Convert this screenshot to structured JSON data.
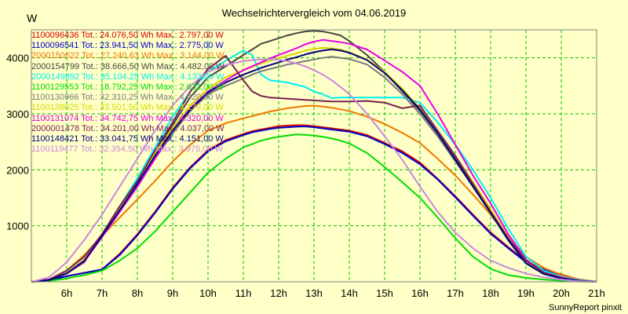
{
  "chart_data": {
    "type": "line",
    "title": "Wechselrichtervergleich vom 04.06.2019",
    "ylabel": "W",
    "xlabel": "",
    "credit": "SunnyReport pinxit",
    "x_range": [
      5.0,
      21.0
    ],
    "ylim": [
      0,
      4500
    ],
    "grid": true,
    "legend_position": "top-left",
    "x_ticks": [
      {
        "x": 6,
        "label": "6h"
      },
      {
        "x": 7,
        "label": "7h"
      },
      {
        "x": 8,
        "label": "8h"
      },
      {
        "x": 9,
        "label": "9h"
      },
      {
        "x": 10,
        "label": "10h"
      },
      {
        "x": 11,
        "label": "11h"
      },
      {
        "x": 12,
        "label": "12h"
      },
      {
        "x": 13,
        "label": "13h"
      },
      {
        "x": 14,
        "label": "14h"
      },
      {
        "x": 15,
        "label": "15h"
      },
      {
        "x": 16,
        "label": "16h"
      },
      {
        "x": 17,
        "label": "17h"
      },
      {
        "x": 18,
        "label": "18h"
      },
      {
        "x": 19,
        "label": "19h"
      },
      {
        "x": 20,
        "label": "20h"
      },
      {
        "x": 21,
        "label": "21h"
      }
    ],
    "y_ticks": [
      {
        "y": 1000,
        "label": "1000"
      },
      {
        "y": 2000,
        "label": "2000"
      },
      {
        "y": 3000,
        "label": "3000"
      },
      {
        "y": 4000,
        "label": "4000"
      }
    ],
    "x": [
      5.0,
      5.5,
      6.0,
      6.5,
      7.0,
      7.5,
      8.0,
      8.5,
      9.0,
      9.5,
      10.0,
      10.5,
      11.0,
      11.25,
      11.5,
      11.75,
      12.0,
      12.25,
      12.5,
      12.75,
      13.0,
      13.25,
      13.5,
      13.75,
      14.0,
      14.5,
      15.0,
      15.5,
      16.0,
      16.5,
      17.0,
      17.5,
      18.0,
      18.5,
      19.0,
      19.5,
      20.0,
      20.5,
      21.0
    ],
    "series": [
      {
        "id": "1100096436",
        "legend": "1100096436 Tot.: 24.076,50 Wh Max.: 2.797,00 W",
        "color": "#d40000",
        "values": [
          0,
          30,
          100,
          160,
          220,
          500,
          850,
          1250,
          1680,
          2050,
          2350,
          2530,
          2640,
          2690,
          2720,
          2750,
          2780,
          2790,
          2797,
          2795,
          2780,
          2760,
          2740,
          2720,
          2700,
          2620,
          2480,
          2330,
          2130,
          1840,
          1530,
          1200,
          880,
          620,
          360,
          230,
          130,
          40,
          0
        ]
      },
      {
        "id": "1100096541",
        "legend": "1100096541 Tot.: 23.941,50 Wh Max.: 2.775,00 W",
        "color": "#0000c8",
        "values": [
          0,
          30,
          100,
          160,
          220,
          480,
          830,
          1230,
          1660,
          2030,
          2330,
          2510,
          2620,
          2670,
          2700,
          2730,
          2750,
          2760,
          2770,
          2775,
          2760,
          2740,
          2720,
          2700,
          2680,
          2600,
          2460,
          2300,
          2100,
          1830,
          1510,
          1180,
          860,
          600,
          350,
          220,
          120,
          40,
          0
        ]
      },
      {
        "id": "2000150622",
        "legend": "2000150622 Tot.: 27.240,63 Wh Max.: 3.144,00 W",
        "color": "#f07800",
        "values": [
          0,
          40,
          200,
          480,
          820,
          1150,
          1470,
          1800,
          2150,
          2450,
          2700,
          2830,
          2920,
          2960,
          3000,
          3040,
          3070,
          3100,
          3120,
          3140,
          3144,
          3130,
          3110,
          3080,
          3050,
          2950,
          2820,
          2660,
          2480,
          2200,
          1900,
          1560,
          1200,
          800,
          450,
          250,
          120,
          40,
          0
        ]
      },
      {
        "id": "2000154799",
        "legend": "2000154799 Tot.: 38.666,50 Wh Max.: 4.482,00 W",
        "color": "#464646",
        "values": [
          0,
          30,
          150,
          350,
          850,
          1300,
          1800,
          2300,
          2800,
          3300,
          3650,
          3850,
          4050,
          4150,
          4250,
          4300,
          4350,
          4400,
          4440,
          4470,
          4482,
          4470,
          4440,
          4400,
          4300,
          4050,
          3750,
          3400,
          3050,
          2650,
          2200,
          1750,
          1250,
          750,
          350,
          150,
          80,
          30,
          0
        ]
      },
      {
        "id": "2000149892",
        "legend": "2000149892 Tot.: 35.104,25 Wh Max.: 4.133,00 W",
        "color": "#00f0f0",
        "values": [
          0,
          30,
          160,
          400,
          850,
          1350,
          1850,
          2400,
          2950,
          3400,
          3750,
          3950,
          4133,
          4050,
          3700,
          3600,
          3580,
          3560,
          3520,
          3480,
          3400,
          3350,
          3280,
          3290,
          3290,
          3290,
          3290,
          3290,
          3200,
          2850,
          2450,
          2000,
          1500,
          950,
          450,
          200,
          90,
          30,
          0
        ]
      },
      {
        "id": "1100129553",
        "legend": "1100129553 Tot.: 18.792,25 Wh Max.: 2.631,00 W",
        "color": "#00dc00",
        "values": [
          0,
          15,
          60,
          120,
          200,
          380,
          600,
          900,
          1250,
          1600,
          1950,
          2200,
          2400,
          2460,
          2520,
          2560,
          2590,
          2610,
          2631,
          2625,
          2610,
          2590,
          2560,
          2520,
          2470,
          2300,
          2050,
          1780,
          1500,
          1150,
          780,
          450,
          230,
          120,
          70,
          40,
          20,
          5,
          0
        ]
      },
      {
        "id": "1100130966",
        "legend": "1100130966 Tot.: 32.310,25 Wh Max.: 4.020,00 W",
        "color": "#7a7a7a",
        "values": [
          0,
          30,
          150,
          380,
          800,
          1250,
          1700,
          2200,
          2650,
          3050,
          3350,
          3500,
          3630,
          3700,
          3760,
          3800,
          3840,
          3880,
          3910,
          3940,
          3970,
          4000,
          4020,
          4000,
          3980,
          3880,
          3650,
          3350,
          3000,
          2600,
          2150,
          1700,
          1250,
          760,
          360,
          150,
          70,
          20,
          0
        ]
      },
      {
        "id": "1100138025",
        "legend": "1100138025 Tot.: 33.501,50 Wh Max.: 4.179,00 W",
        "color": "#d8d800",
        "values": [
          0,
          30,
          160,
          400,
          850,
          1300,
          1800,
          2300,
          2750,
          3150,
          3450,
          3650,
          3780,
          3840,
          3900,
          3950,
          4000,
          4040,
          4080,
          4130,
          4160,
          4179,
          4170,
          4150,
          4100,
          3970,
          3750,
          3450,
          3100,
          2700,
          2250,
          1780,
          1300,
          800,
          380,
          160,
          70,
          20,
          0
        ]
      },
      {
        "id": "1100131074",
        "legend": "1100131074 Tot.: 34.742,75 Wh Max.: 4.320,00 W",
        "color": "#e600e6",
        "values": [
          0,
          40,
          150,
          360,
          800,
          1250,
          1700,
          2200,
          2700,
          3100,
          3400,
          3600,
          3780,
          3850,
          3920,
          3990,
          4050,
          4110,
          4170,
          4240,
          4290,
          4320,
          4300,
          4280,
          4250,
          4150,
          3950,
          3750,
          3500,
          3000,
          2450,
          1900,
          1400,
          850,
          400,
          170,
          80,
          20,
          0
        ]
      },
      {
        "id": "2000001478",
        "legend": "2000001478 Tot.: 34.201,00 Wh Max.: 4.037,00 W",
        "color": "#7a2050",
        "values": [
          0,
          40,
          200,
          450,
          850,
          1350,
          1800,
          2350,
          2850,
          3400,
          3800,
          4037,
          3600,
          3400,
          3320,
          3290,
          3280,
          3270,
          3260,
          3250,
          3240,
          3230,
          3220,
          3220,
          3220,
          3230,
          3200,
          3100,
          3150,
          2700,
          2250,
          1750,
          1250,
          780,
          380,
          170,
          70,
          20,
          0
        ]
      },
      {
        "id": "1100148421",
        "legend": "1100148421 Tot.: 33.041,75 Wh Max.: 4.151,00 W",
        "color": "#000080",
        "values": [
          0,
          30,
          150,
          380,
          820,
          1280,
          1750,
          2250,
          2700,
          3080,
          3380,
          3560,
          3700,
          3760,
          3820,
          3870,
          3920,
          3970,
          4010,
          4060,
          4100,
          4130,
          4151,
          4130,
          4090,
          3960,
          3730,
          3420,
          3080,
          2650,
          2180,
          1700,
          1230,
          740,
          330,
          140,
          60,
          20,
          0
        ]
      },
      {
        "id": "1100119477",
        "legend": "1100119477 Tot.: 32.354,50 Wh Max.: 3.975,00 W",
        "color": "#cc88dd",
        "values": [
          0,
          80,
          350,
          750,
          1200,
          1700,
          2200,
          2700,
          3150,
          3500,
          3750,
          3870,
          3940,
          3960,
          3970,
          3975,
          3965,
          3940,
          3900,
          3850,
          3780,
          3700,
          3600,
          3480,
          3350,
          3000,
          2600,
          2180,
          1700,
          1250,
          880,
          600,
          380,
          250,
          150,
          80,
          40,
          10,
          0
        ]
      }
    ]
  }
}
